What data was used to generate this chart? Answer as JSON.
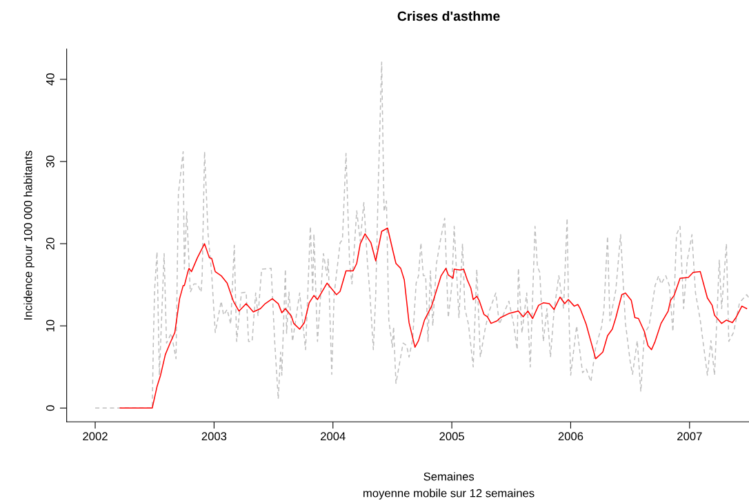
{
  "chart_data": {
    "type": "line",
    "title": "Crises d'asthme",
    "xlabel": "Semaines",
    "ylabel": "Incidence pour 100 000 habitants",
    "annotations": [
      "moyenne mobile sur 12 semaines"
    ],
    "xlim": [
      2001.76,
      2007.5
    ],
    "ylim": [
      -1.68,
      43.68
    ],
    "xticks": [
      2002,
      2003,
      2004,
      2005,
      2006,
      2007
    ],
    "yticks": [
      0,
      10,
      20,
      30,
      40
    ],
    "grid": false,
    "legend": false,
    "marker": "none",
    "series": [
      {
        "color": "#bebebe",
        "line_style": "dashed",
        "x": [
          2002.0,
          2002.48,
          2002.49,
          2002.5,
          2002.52,
          2002.54,
          2002.58,
          2002.6,
          2002.64,
          2002.68,
          2002.7,
          2002.74,
          2002.75,
          2002.77,
          2002.8,
          2002.83,
          2002.86,
          2002.89,
          2002.9,
          2002.92,
          2002.95,
          2002.98,
          2003.01,
          2003.06,
          2003.08,
          2003.11,
          2003.14,
          2003.17,
          2003.19,
          2003.23,
          2003.27,
          2003.29,
          2003.32,
          2003.35,
          2003.37,
          2003.4,
          2003.48,
          2003.51,
          2003.54,
          2003.56,
          2003.57,
          2003.6,
          2003.61,
          2003.63,
          2003.66,
          2003.72,
          2003.77,
          2003.81,
          2003.83,
          2003.84,
          2003.87,
          2003.92,
          2003.95,
          2003.96,
          2003.99,
          2004.01,
          2004.06,
          2004.08,
          2004.11,
          2004.14,
          2004.16,
          2004.2,
          2004.23,
          2004.26,
          2004.29,
          2004.31,
          2004.34,
          2004.36,
          2004.38,
          2004.41,
          2004.43,
          2004.45,
          2004.47,
          2004.5,
          2004.51,
          2004.53,
          2004.56,
          2004.59,
          2004.62,
          2004.64,
          2004.67,
          2004.7,
          2004.72,
          2004.74,
          2004.76,
          2004.78,
          2004.8,
          2004.82,
          2004.84,
          2004.87,
          2004.9,
          2004.94,
          2004.97,
          2005.0,
          2005.02,
          2005.06,
          2005.09,
          2005.11,
          2005.14,
          2005.18,
          2005.21,
          2005.24,
          2005.28,
          2005.31,
          2005.37,
          2005.4,
          2005.48,
          2005.52,
          2005.55,
          2005.56,
          2005.59,
          2005.63,
          2005.66,
          2005.7,
          2005.72,
          2005.74,
          2005.77,
          2005.8,
          2005.83,
          2005.86,
          2005.9,
          2005.94,
          2005.97,
          2005.98,
          2006.0,
          2006.05,
          2006.1,
          2006.13,
          2006.17,
          2006.21,
          2006.26,
          2006.28,
          2006.31,
          2006.33,
          2006.38,
          2006.42,
          2006.46,
          2006.5,
          2006.52,
          2006.56,
          2006.59,
          2006.62,
          2006.66,
          2006.71,
          2006.74,
          2006.76,
          2006.8,
          2006.83,
          2006.86,
          2006.89,
          2006.92,
          2006.95,
          2006.98,
          2007.02,
          2007.05,
          2007.09,
          2007.15,
          2007.18,
          2007.21,
          2007.25,
          2007.27,
          2007.31,
          2007.33,
          2007.37,
          2007.42,
          2007.48,
          2007.5
        ],
        "values": [
          0,
          0,
          8.5,
          14.4,
          19.0,
          4.0,
          18.8,
          7.9,
          9.1,
          6.0,
          26.1,
          31.2,
          16.9,
          23.9,
          14.1,
          15.1,
          15.1,
          14.1,
          16.1,
          31.2,
          21.1,
          16.3,
          9.2,
          13.0,
          11.3,
          12.0,
          10.2,
          19.8,
          8.1,
          14.0,
          14.1,
          8.1,
          8.1,
          14.0,
          11.2,
          16.9,
          17.0,
          8.1,
          1.1,
          6.8,
          4.0,
          16.9,
          9.1,
          14.1,
          8.1,
          14.0,
          7.1,
          22.1,
          14.1,
          21.2,
          8.1,
          18.8,
          16.1,
          18.2,
          4.1,
          13.8,
          20.1,
          20.5,
          31.0,
          17.7,
          15.1,
          24.0,
          20.3,
          25.0,
          17.7,
          14.1,
          7.1,
          13.8,
          26.4,
          42.1,
          23.9,
          25.2,
          10.7,
          7.4,
          9.9,
          3.0,
          5.4,
          7.9,
          7.6,
          6.2,
          8.3,
          15.2,
          16.1,
          20.1,
          16.1,
          16.1,
          8.1,
          16.7,
          10.0,
          17.5,
          20.1,
          23.1,
          11.0,
          14.9,
          22.1,
          11.0,
          20.0,
          12.1,
          10.2,
          5.0,
          16.9,
          6.2,
          9.6,
          11.6,
          14.0,
          10.2,
          13.0,
          10.2,
          7.1,
          17.0,
          9.1,
          14.0,
          5.0,
          22.1,
          17.2,
          16.5,
          8.1,
          12.1,
          6.2,
          11.8,
          16.1,
          12.1,
          23.1,
          14.1,
          4.0,
          10.0,
          4.3,
          4.8,
          3.2,
          7.4,
          9.9,
          12.1,
          20.9,
          10.6,
          14.4,
          21.1,
          10.4,
          5.7,
          4.1,
          8.2,
          2.0,
          9.1,
          10.0,
          14.9,
          16.1,
          15.1,
          16.1,
          14.9,
          9.3,
          21.1,
          22.1,
          12.1,
          17.9,
          21.1,
          14.0,
          10.7,
          4.0,
          8.2,
          4.0,
          18.0,
          12.1,
          20.0,
          8.1,
          9.2,
          12.8,
          13.8,
          13.4
        ]
      },
      {
        "color": "#ff0000",
        "line_style": "solid",
        "x": [
          2002.21,
          2002.48,
          2002.52,
          2002.55,
          2002.59,
          2002.63,
          2002.67,
          2002.71,
          2002.74,
          2002.75,
          2002.78,
          2002.79,
          2002.81,
          2002.86,
          2002.92,
          2002.96,
          2002.98,
          2003.01,
          2003.06,
          2003.11,
          2003.16,
          2003.17,
          2003.21,
          2003.27,
          2003.33,
          2003.39,
          2003.43,
          2003.49,
          2003.54,
          2003.57,
          2003.6,
          2003.65,
          2003.67,
          2003.72,
          2003.76,
          2003.8,
          2003.84,
          2003.87,
          2003.95,
          2004.03,
          2004.06,
          2004.11,
          2004.17,
          2004.2,
          2004.23,
          2004.27,
          2004.32,
          2004.36,
          2004.41,
          2004.46,
          2004.5,
          2004.53,
          2004.57,
          2004.6,
          2004.64,
          2004.69,
          2004.72,
          2004.77,
          2004.83,
          2004.91,
          2004.95,
          2004.97,
          2005.01,
          2005.02,
          2005.07,
          2005.1,
          2005.13,
          2005.16,
          2005.18,
          2005.21,
          2005.23,
          2005.27,
          2005.3,
          2005.33,
          2005.38,
          2005.41,
          2005.48,
          2005.56,
          2005.6,
          2005.64,
          2005.68,
          2005.73,
          2005.77,
          2005.82,
          2005.86,
          2005.91,
          2005.95,
          2005.98,
          2006.03,
          2006.06,
          2006.08,
          2006.13,
          2006.17,
          2006.21,
          2006.27,
          2006.31,
          2006.35,
          2006.38,
          2006.43,
          2006.46,
          2006.51,
          2006.54,
          2006.57,
          2006.62,
          2006.65,
          2006.68,
          2006.71,
          2006.76,
          2006.82,
          2006.84,
          2006.87,
          2006.92,
          2006.99,
          2007.03,
          2007.09,
          2007.15,
          2007.19,
          2007.21,
          2007.27,
          2007.31,
          2007.36,
          2007.39,
          2007.44,
          2007.48
        ],
        "values": [
          0,
          0,
          2.6,
          4.0,
          6.5,
          7.9,
          9.2,
          13.3,
          14.9,
          14.9,
          16.6,
          17.0,
          16.6,
          18.3,
          20.0,
          18.3,
          18.2,
          16.6,
          16.1,
          15.2,
          13.1,
          12.8,
          11.8,
          12.7,
          11.7,
          12.1,
          12.7,
          13.3,
          12.7,
          11.6,
          12.1,
          11.2,
          10.3,
          9.6,
          10.4,
          12.8,
          13.7,
          13.2,
          15.2,
          13.8,
          14.2,
          16.7,
          16.7,
          17.6,
          20.0,
          21.2,
          20.1,
          17.9,
          21.5,
          21.9,
          19.4,
          17.6,
          17.0,
          15.6,
          10.4,
          7.4,
          8.2,
          10.7,
          12.4,
          16.1,
          17.0,
          16.2,
          15.8,
          16.9,
          16.8,
          16.9,
          15.6,
          14.6,
          13.2,
          13.6,
          13.1,
          11.4,
          11.1,
          10.3,
          10.6,
          11.0,
          11.5,
          11.8,
          11.1,
          11.8,
          10.9,
          12.5,
          12.8,
          12.7,
          12.0,
          13.5,
          12.7,
          13.2,
          12.4,
          12.6,
          12.1,
          10.2,
          8.1,
          6.0,
          6.8,
          8.8,
          9.6,
          11.0,
          13.8,
          14.0,
          13.1,
          11.0,
          10.9,
          9.3,
          7.6,
          7.1,
          8.1,
          10.3,
          11.8,
          13.1,
          13.7,
          15.8,
          15.9,
          16.5,
          16.6,
          13.4,
          12.5,
          11.3,
          10.3,
          10.7,
          10.4,
          11.0,
          12.4,
          12.1
        ]
      }
    ]
  }
}
